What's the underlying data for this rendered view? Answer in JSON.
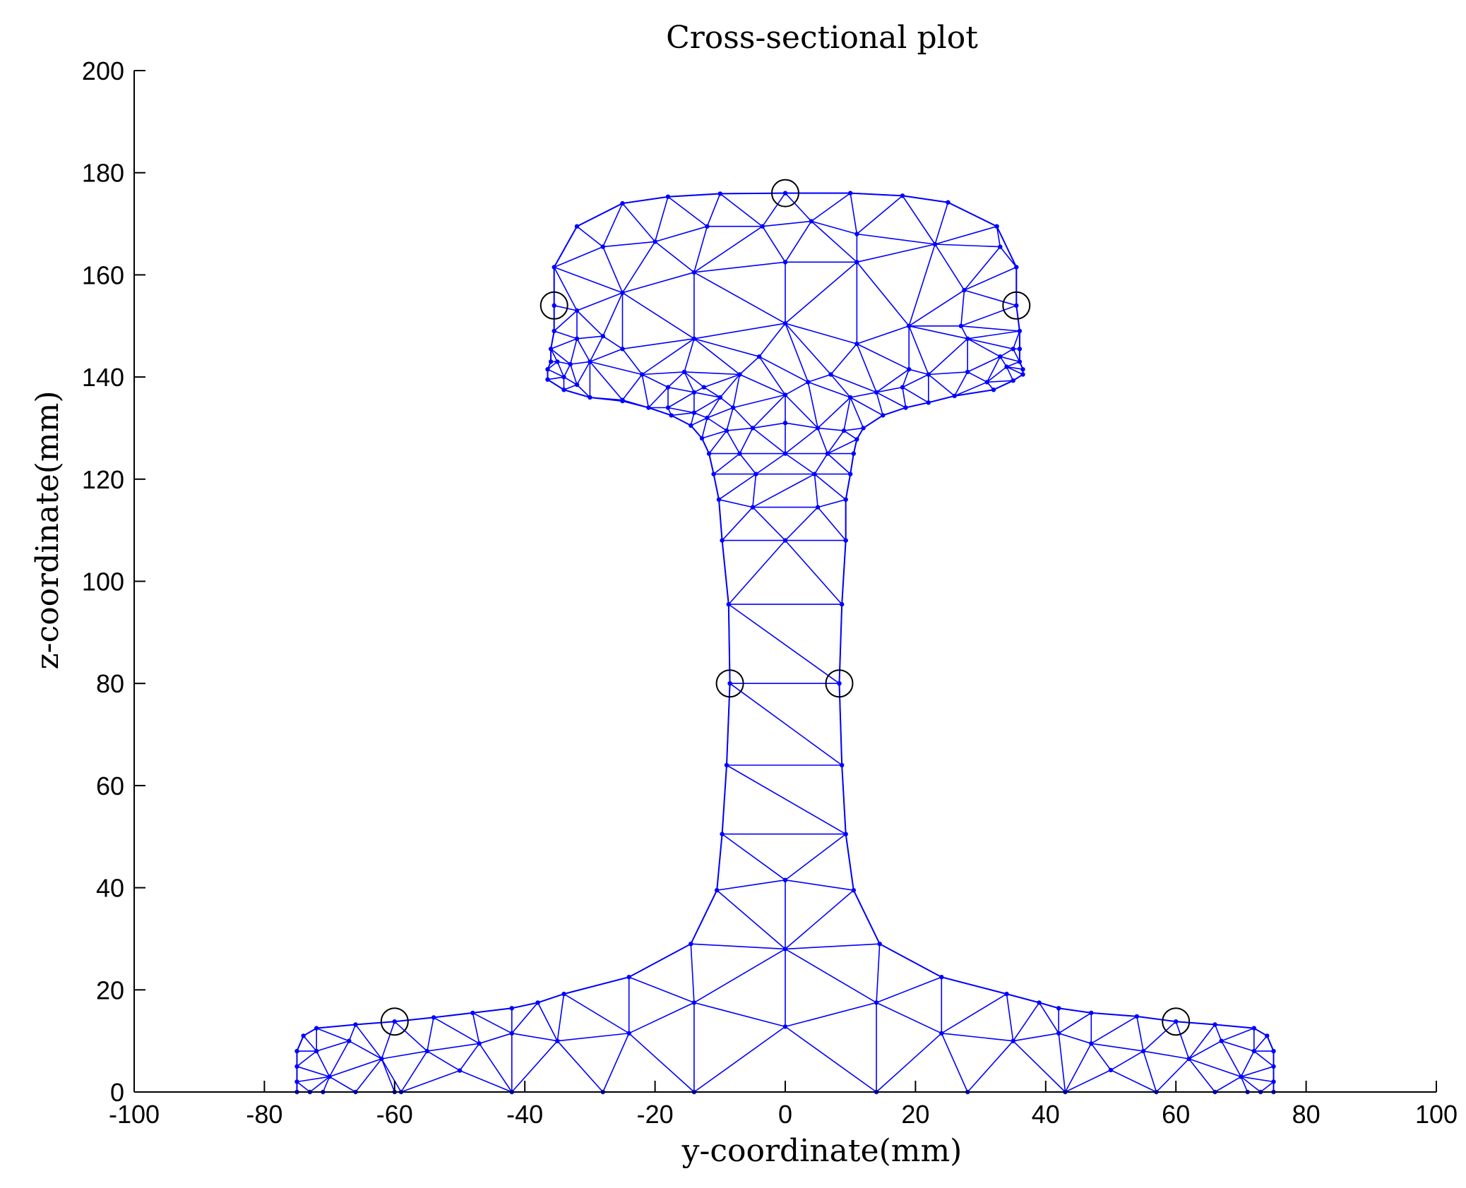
{
  "chart_data": {
    "type": "scatter",
    "title": "Cross-sectional plot",
    "xlabel": "y-coordinate(mm)",
    "ylabel": "z-coordinate(mm)",
    "xlim": [
      -100,
      100
    ],
    "ylim": [
      0,
      200
    ],
    "xticks": [
      -100,
      -80,
      -60,
      -40,
      -20,
      0,
      20,
      40,
      60,
      80,
      100
    ],
    "yticks": [
      0,
      20,
      40,
      60,
      80,
      100,
      120,
      140,
      160,
      180,
      200
    ],
    "grid": false,
    "mesh_color": "#0000ff",
    "marker_color": "#000000",
    "outline": [
      [
        -75,
        2
      ],
      [
        -75,
        5
      ],
      [
        -75,
        8
      ],
      [
        -74,
        11
      ],
      [
        -72,
        12.5
      ],
      [
        -66,
        13.2
      ],
      [
        -60,
        13.8
      ],
      [
        -54,
        14.6
      ],
      [
        -48,
        15.5
      ],
      [
        -42,
        16.4
      ],
      [
        -38,
        17.5
      ],
      [
        -34,
        19.2
      ],
      [
        -24,
        22.5
      ],
      [
        -14.5,
        29
      ],
      [
        -10.5,
        39.5
      ],
      [
        -9.7,
        50.5
      ],
      [
        -9,
        64
      ],
      [
        -8.5,
        80
      ],
      [
        -8.7,
        95.5
      ],
      [
        -9.7,
        108
      ],
      [
        -10.2,
        116
      ],
      [
        -11,
        121
      ],
      [
        -11.7,
        125
      ],
      [
        -12.8,
        128
      ],
      [
        -14.5,
        130.5
      ],
      [
        -17.5,
        132.5
      ],
      [
        -21,
        134
      ],
      [
        -25,
        135.3
      ],
      [
        -30,
        136
      ],
      [
        -34,
        137.5
      ],
      [
        -36.5,
        139.5
      ],
      [
        -36.5,
        141.5
      ],
      [
        -36,
        143
      ],
      [
        -36,
        145.5
      ],
      [
        -35.5,
        149
      ],
      [
        -35.5,
        154
      ],
      [
        -35.5,
        161.5
      ],
      [
        -32,
        169.5
      ],
      [
        -25,
        174
      ],
      [
        -18,
        175.3
      ],
      [
        -10,
        175.9
      ],
      [
        0,
        176
      ],
      [
        10,
        176
      ],
      [
        18,
        175.5
      ],
      [
        25,
        174.2
      ],
      [
        32.5,
        169.5
      ],
      [
        35.5,
        161.5
      ],
      [
        35.5,
        154
      ],
      [
        36,
        149
      ],
      [
        36,
        145.5
      ],
      [
        36,
        143
      ],
      [
        36.5,
        141.5
      ],
      [
        36.5,
        140.5
      ],
      [
        35,
        139.3
      ],
      [
        32,
        137.5
      ],
      [
        26,
        136.3
      ],
      [
        22,
        135
      ],
      [
        18.5,
        134
      ],
      [
        15,
        132.5
      ],
      [
        12,
        130
      ],
      [
        11,
        127.8
      ],
      [
        10.5,
        125
      ],
      [
        10,
        121
      ],
      [
        9.3,
        116
      ],
      [
        9.3,
        108
      ],
      [
        8.7,
        95.5
      ],
      [
        8.3,
        80
      ],
      [
        8.7,
        64
      ],
      [
        9.3,
        50.5
      ],
      [
        10.5,
        39.5
      ],
      [
        14.5,
        29
      ],
      [
        24,
        22.5
      ],
      [
        34,
        19.2
      ],
      [
        39,
        17.5
      ],
      [
        42,
        16.4
      ],
      [
        47,
        15.5
      ],
      [
        54,
        14.8
      ],
      [
        60,
        13.8
      ],
      [
        66,
        13.2
      ],
      [
        72,
        12.5
      ],
      [
        74,
        11
      ],
      [
        75,
        8
      ],
      [
        75,
        5
      ],
      [
        75,
        2
      ],
      [
        75,
        0
      ],
      [
        -75,
        0
      ]
    ],
    "interior": [
      [
        -72,
        8
      ],
      [
        -67,
        10
      ],
      [
        -70,
        3
      ],
      [
        -62,
        6.5
      ],
      [
        -60,
        0
      ],
      [
        -55,
        8
      ],
      [
        -50,
        4.2
      ],
      [
        -47,
        9.5
      ],
      [
        -42,
        11.5
      ],
      [
        -35,
        10
      ],
      [
        -24,
        11.5
      ],
      [
        -14,
        17.5
      ],
      [
        0,
        28
      ],
      [
        0,
        12.8
      ],
      [
        0,
        41.5
      ],
      [
        14,
        17.5
      ],
      [
        24,
        11.5
      ],
      [
        35,
        10
      ],
      [
        42,
        11.5
      ],
      [
        47,
        9.5
      ],
      [
        50,
        4.3
      ],
      [
        55,
        8
      ],
      [
        62,
        6.5
      ],
      [
        67,
        10
      ],
      [
        70,
        3
      ],
      [
        72,
        8
      ],
      [
        0,
        108
      ],
      [
        -5,
        114.5
      ],
      [
        5,
        114.5
      ],
      [
        -4.5,
        121
      ],
      [
        4.5,
        121
      ],
      [
        -7,
        125
      ],
      [
        0,
        125
      ],
      [
        6.5,
        125
      ],
      [
        -5,
        130
      ],
      [
        5,
        130
      ],
      [
        0,
        131
      ],
      [
        -9,
        129.5
      ],
      [
        9,
        129.5
      ],
      [
        -12,
        132
      ],
      [
        -14,
        133
      ],
      [
        -18,
        134
      ],
      [
        -25,
        135.5
      ],
      [
        -32,
        138.5
      ],
      [
        -34,
        140
      ],
      [
        -33,
        142.5
      ],
      [
        -35,
        143
      ],
      [
        -30,
        143
      ],
      [
        -22,
        140.5
      ],
      [
        -18,
        138
      ],
      [
        -14,
        137
      ],
      [
        -10,
        136
      ],
      [
        -7,
        140.5
      ],
      [
        0,
        136.5
      ],
      [
        3.5,
        139
      ],
      [
        7,
        140.5
      ],
      [
        10,
        136
      ],
      [
        14,
        137
      ],
      [
        18,
        138
      ],
      [
        19,
        141.5
      ],
      [
        22,
        140.5
      ],
      [
        28,
        141
      ],
      [
        31,
        139
      ],
      [
        34,
        142
      ],
      [
        33,
        144
      ],
      [
        35,
        145.5
      ],
      [
        28,
        147.5
      ],
      [
        19,
        150
      ],
      [
        11,
        146.5
      ],
      [
        0,
        150.5
      ],
      [
        -14,
        147.5
      ],
      [
        -28,
        148
      ],
      [
        -32,
        147.5
      ],
      [
        -25,
        156.5
      ],
      [
        -14,
        160.5
      ],
      [
        0,
        162.5
      ],
      [
        11,
        162.5
      ],
      [
        23,
        166
      ],
      [
        27.5,
        157
      ],
      [
        33,
        165.5
      ],
      [
        -3.5,
        169.5
      ],
      [
        4,
        170.5
      ],
      [
        11,
        168
      ],
      [
        -12,
        169.5
      ],
      [
        -20,
        166.5
      ],
      [
        -28,
        165.5
      ],
      [
        -32,
        153
      ],
      [
        -25,
        145.5
      ],
      [
        -15.5,
        141
      ],
      [
        -12.5,
        138
      ],
      [
        -4,
        144
      ],
      [
        27,
        150
      ],
      [
        -8,
        134
      ]
    ],
    "circled_points": [
      [
        0,
        176
      ],
      [
        -35.5,
        154
      ],
      [
        35.5,
        154
      ],
      [
        -8.5,
        80
      ],
      [
        8.3,
        80
      ],
      [
        -60,
        13.8
      ],
      [
        60,
        13.8
      ]
    ]
  }
}
